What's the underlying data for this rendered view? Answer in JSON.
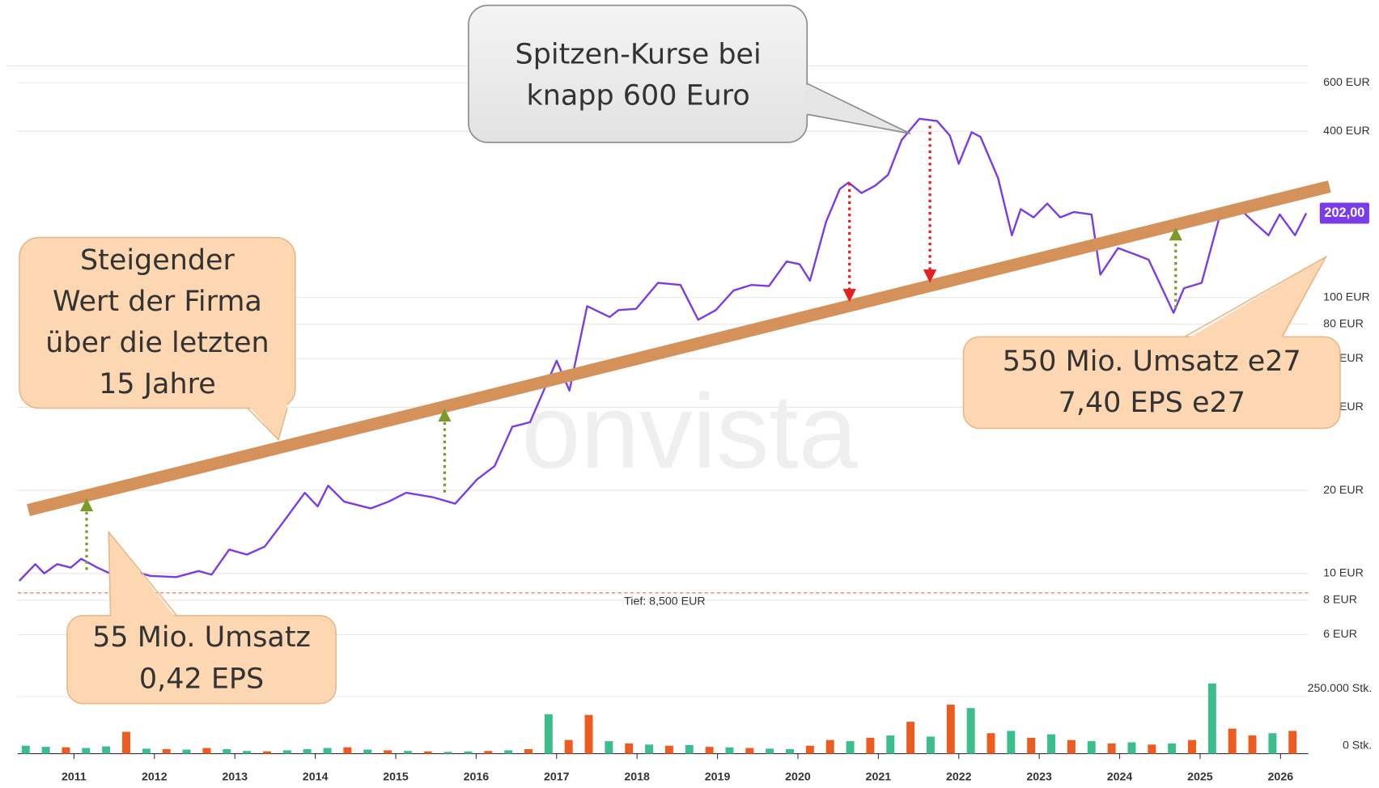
{
  "chart_data": {
    "type": "line",
    "color": "#7a3ce8",
    "log_scale": true,
    "grid": true,
    "x": [
      2010.32,
      2010.52,
      2010.63,
      2010.79,
      2010.96,
      2011.09,
      2011.29,
      2011.45,
      2011.67,
      2011.95,
      2012.27,
      2012.55,
      2012.71,
      2012.93,
      2013.15,
      2013.37,
      2013.59,
      2013.87,
      2014.03,
      2014.16,
      2014.36,
      2014.69,
      2014.91,
      2015.13,
      2015.46,
      2015.74,
      2016.01,
      2016.23,
      2016.45,
      2016.67,
      2017.0,
      2017.16,
      2017.38,
      2017.66,
      2017.77,
      2017.99,
      2018.26,
      2018.54,
      2018.76,
      2018.98,
      2019.2,
      2019.42,
      2019.64,
      2019.86,
      2020.02,
      2020.15,
      2020.35,
      2020.52,
      2020.63,
      2020.79,
      2020.96,
      2021.12,
      2021.29,
      2021.51,
      2021.73,
      2021.89,
      2022.0,
      2022.16,
      2022.27,
      2022.49,
      2022.66,
      2022.77,
      2022.93,
      2023.1,
      2023.26,
      2023.43,
      2023.65,
      2023.76,
      2023.98,
      2024.2,
      2024.36,
      2024.67,
      2024.8,
      2025.02,
      2025.24,
      2025.52,
      2025.68,
      2025.85,
      2025.99,
      2026.18,
      2026.32
    ],
    "values": [
      9.4,
      10.8,
      10,
      10.8,
      10.5,
      11.3,
      10.5,
      10,
      10.3,
      9.8,
      9.7,
      10.2,
      9.9,
      12.2,
      11.7,
      12.5,
      15.2,
      19.6,
      17.5,
      20.8,
      18.2,
      17.2,
      18.2,
      19.6,
      18.9,
      17.9,
      21.9,
      24.5,
      34,
      35.3,
      59,
      46,
      93,
      85,
      90,
      91,
      113,
      111,
      83,
      90,
      106,
      111,
      110,
      135,
      132,
      115,
      188,
      247,
      261,
      239,
      254,
      278,
      372,
      444,
      436,
      386,
      305,
      397,
      382,
      270,
      168,
      209,
      195,
      219,
      195,
      204,
      200,
      121,
      151,
      143,
      137,
      88,
      108,
      113,
      195,
      206,
      186,
      168,
      200,
      168,
      202
    ],
    "last_label": "202,00",
    "xlim": [
      2010.3,
      2026.4
    ],
    "xticks": [
      2011,
      2012,
      2013,
      2014,
      2015,
      2016,
      2017,
      2018,
      2019,
      2020,
      2021,
      2022,
      2023,
      2024,
      2025,
      2026
    ],
    "ylim": [
      5.5,
      690
    ],
    "yticks": [
      {
        "value": 6,
        "label": "6 EUR"
      },
      {
        "value": 8,
        "label": "8 EUR"
      },
      {
        "value": 10,
        "label": "10 EUR"
      },
      {
        "value": 20,
        "label": "20 EUR"
      },
      {
        "value": 40,
        "label": "40 EUR"
      },
      {
        "value": 60,
        "label": "60 EUR"
      },
      {
        "value": 80,
        "label": "80 EUR"
      },
      {
        "value": 100,
        "label": "100 EUR"
      },
      {
        "value": 400,
        "label": "400 EUR"
      },
      {
        "value": 600,
        "label": "600 EUR"
      }
    ],
    "low": {
      "value": 8.5,
      "label": "Tief: 8,500 EUR",
      "color": "#e8542a"
    },
    "watermark": "onvista",
    "volume": {
      "start": 2010.4,
      "step": 0.25,
      "values": [
        35000,
        30000,
        28000,
        25000,
        32000,
        96000,
        22000,
        20000,
        18000,
        25000,
        20000,
        12000,
        10000,
        15000,
        20000,
        25000,
        28000,
        18000,
        15000,
        12000,
        10000,
        8000,
        10000,
        12000,
        15000,
        20000,
        173000,
        60000,
        170000,
        55000,
        45000,
        40000,
        35000,
        38000,
        30000,
        28000,
        25000,
        22000,
        20000,
        35000,
        60000,
        55000,
        70000,
        80000,
        140000,
        75000,
        215000,
        200000,
        90000,
        100000,
        70000,
        85000,
        60000,
        55000,
        45000,
        50000,
        40000,
        45000,
        60000,
        308000,
        110000,
        80000,
        90000,
        100000
      ],
      "colors": [
        "#3cbd8c",
        "#3cbd8c",
        "#ec5b20",
        "#3cbd8c",
        "#3cbd8c",
        "#ec5b20",
        "#3cbd8c",
        "#ec5b20",
        "#3cbd8c",
        "#ec5b20",
        "#3cbd8c",
        "#3cbd8c",
        "#ec5b20",
        "#3cbd8c",
        "#3cbd8c",
        "#3cbd8c",
        "#ec5b20",
        "#3cbd8c",
        "#ec5b20",
        "#3cbd8c",
        "#ec5b20",
        "#3cbd8c",
        "#3cbd8c",
        "#ec5b20",
        "#3cbd8c",
        "#ec5b20",
        "#3cbd8c",
        "#ec5b20",
        "#ec5b20",
        "#3cbd8c",
        "#ec5b20",
        "#3cbd8c",
        "#ec5b20",
        "#3cbd8c",
        "#ec5b20",
        "#3cbd8c",
        "#ec5b20",
        "#3cbd8c",
        "#3cbd8c",
        "#ec5b20",
        "#ec5b20",
        "#3cbd8c",
        "#ec5b20",
        "#3cbd8c",
        "#ec5b20",
        "#3cbd8c",
        "#ec5b20",
        "#3cbd8c",
        "#ec5b20",
        "#3cbd8c",
        "#ec5b20",
        "#3cbd8c",
        "#ec5b20",
        "#3cbd8c",
        "#ec5b20",
        "#3cbd8c",
        "#ec5b20",
        "#3cbd8c",
        "#ec5b20",
        "#3cbd8c",
        "#ec5b20",
        "#ec5b20",
        "#3cbd8c",
        "#ec5b20"
      ],
      "ylim": [
        0,
        320000
      ],
      "yticks": [
        {
          "value": 0,
          "label": "0 Stk."
        },
        {
          "value": 250000,
          "label": "250.000 Stk."
        }
      ]
    },
    "annotations": [
      {
        "lines": [
          "Spitzen-Kurse bei",
          "knapp 600 Euro"
        ]
      },
      {
        "lines": [
          "Steigender",
          "Wert der Firma",
          "über die letzten",
          "15 Jahre"
        ]
      },
      {
        "lines": [
          "55 Mio. Umsatz",
          "0,42 EPS"
        ]
      },
      {
        "lines": [
          "550 Mio. Umsatz e27",
          "7,40 EPS e27"
        ]
      }
    ]
  }
}
